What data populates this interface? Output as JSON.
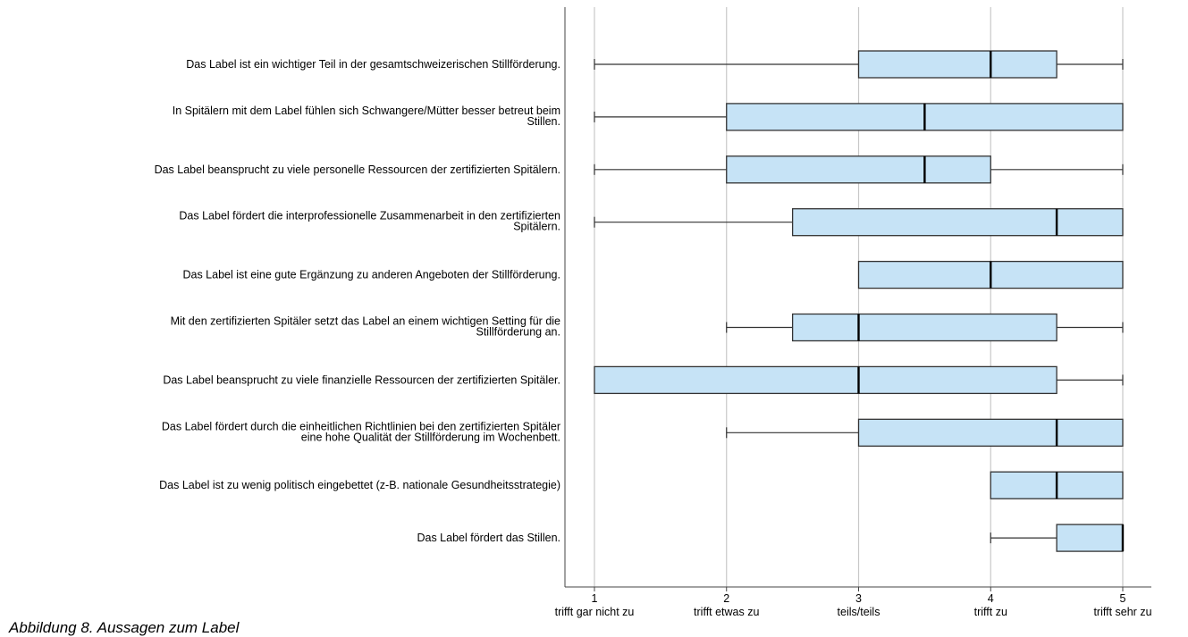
{
  "caption": "Abbildung 8. Aussagen zum Label",
  "chart_data": {
    "type": "boxplot",
    "orientation": "horizontal",
    "x_range": [
      1,
      5
    ],
    "grid": true,
    "x_ticks": [
      {
        "value": 1,
        "label": "1",
        "text": "trifft gar nicht zu"
      },
      {
        "value": 2,
        "label": "2",
        "text": "trifft etwas zu"
      },
      {
        "value": 3,
        "label": "3",
        "text": "teils/teils"
      },
      {
        "value": 4,
        "label": "4",
        "text": "trifft zu"
      },
      {
        "value": 5,
        "label": "5",
        "text": "trifft sehr zu"
      }
    ],
    "box_color": "#c6e3f6",
    "items": [
      {
        "label": [
          "Das Label ist ein wichtiger Teil in der gesamtschweizerischen Stillförderung."
        ],
        "min": 1,
        "q1": 3,
        "median": 4,
        "q3": 4.5,
        "max": 5
      },
      {
        "label": [
          "In Spitälern mit dem Label fühlen sich Schwangere/Mütter besser betreut beim",
          "Stillen."
        ],
        "min": 1,
        "q1": 2,
        "median": 3.5,
        "q3": 5,
        "max": 5
      },
      {
        "label": [
          "Das Label beansprucht zu viele personelle Ressourcen der zertifizierten Spitälern."
        ],
        "min": 1,
        "q1": 2,
        "median": 3.5,
        "q3": 4,
        "max": 5
      },
      {
        "label": [
          "Das Label fördert die interprofessionelle Zusammenarbeit in den zertifizierten",
          "Spitälern."
        ],
        "min": 1,
        "q1": 2.5,
        "median": 4.5,
        "q3": 5,
        "max": 5
      },
      {
        "label": [
          "Das Label ist eine gute Ergänzung zu anderen Angeboten der Stillförderung."
        ],
        "min": 3,
        "q1": 3,
        "median": 4,
        "q3": 5,
        "max": 5
      },
      {
        "label": [
          "Mit den zertifizierten Spitäler setzt das Label an einem wichtigen Setting für die",
          "Stillförderung an."
        ],
        "min": 2,
        "q1": 2.5,
        "median": 3,
        "q3": 4.5,
        "max": 5
      },
      {
        "label": [
          "Das Label beansprucht zu viele finanzielle Ressourcen der zertifizierten Spitäler."
        ],
        "min": 1,
        "q1": 1,
        "median": 3,
        "q3": 4.5,
        "max": 5
      },
      {
        "label": [
          "Das Label fördert durch die einheitlichen Richtlinien bei den zertifizierten Spitäler",
          "eine hohe Qualität der Stillförderung im Wochenbett."
        ],
        "min": 2,
        "q1": 3,
        "median": 4.5,
        "q3": 5,
        "max": 5
      },
      {
        "label": [
          "Das Label ist zu wenig politisch eingebettet (z-B. nationale Gesundheitsstrategie)"
        ],
        "min": 4,
        "q1": 4,
        "median": 4.5,
        "q3": 5,
        "max": 5
      },
      {
        "label": [
          "Das Label fördert das Stillen."
        ],
        "min": 4,
        "q1": 4.5,
        "median": 5,
        "q3": 5,
        "max": 5
      }
    ]
  }
}
